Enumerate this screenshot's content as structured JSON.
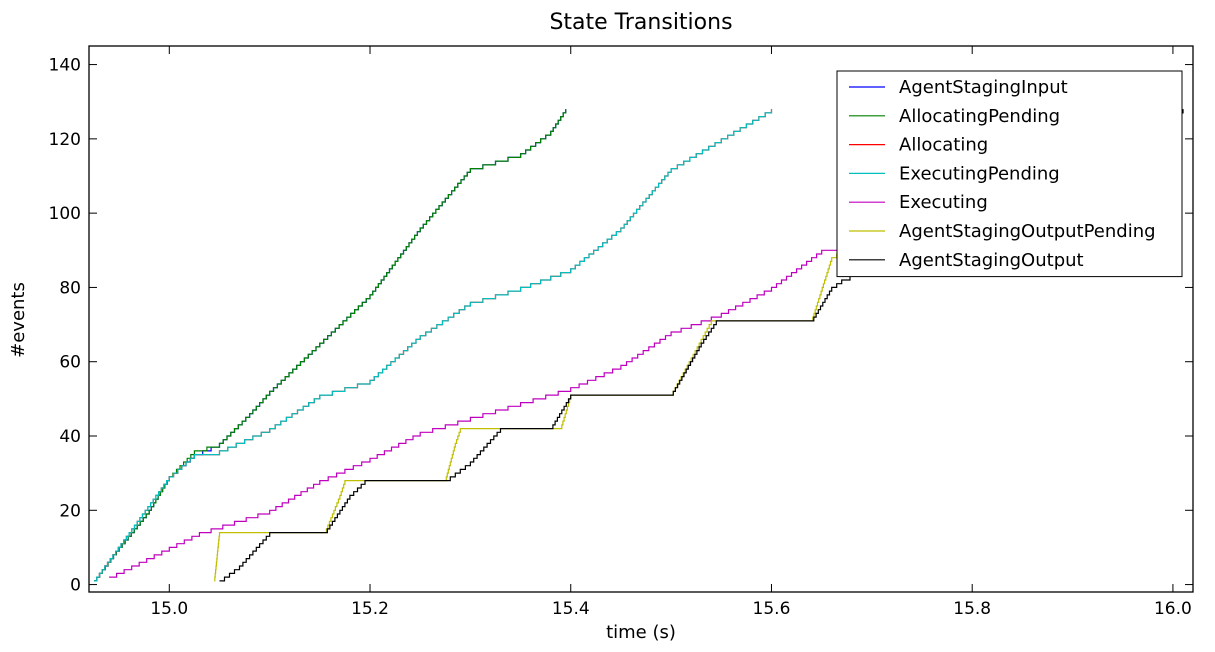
{
  "chart_data": {
    "type": "line",
    "title": "State Transitions",
    "xlabel": "time (s)",
    "ylabel": "#events",
    "xlim": [
      14.92,
      16.02
    ],
    "ylim": [
      -2,
      145
    ],
    "xticks": [
      15.0,
      15.2,
      15.4,
      15.6,
      15.8,
      16.0
    ],
    "xtick_labels": [
      "15.0",
      "15.2",
      "15.4",
      "15.6",
      "15.8",
      "16.0"
    ],
    "yticks": [
      0,
      20,
      40,
      60,
      80,
      100,
      120,
      140
    ],
    "ytick_labels": [
      "0",
      "20",
      "40",
      "60",
      "80",
      "100",
      "120",
      "140"
    ],
    "step": true,
    "grid": false,
    "legend_position": "top-right",
    "series": [
      {
        "name": "AgentStagingInput",
        "color": "#0000ff",
        "x": [
          14.925,
          14.95,
          14.98,
          15.0,
          15.025,
          15.05,
          15.08,
          15.1,
          15.15,
          15.2,
          15.25,
          15.3,
          15.35,
          15.38,
          15.395
        ],
        "y": [
          1,
          10,
          20,
          29,
          35,
          38,
          46,
          52,
          65,
          78,
          96,
          112,
          116,
          122,
          128
        ]
      },
      {
        "name": "AllocatingPending",
        "color": "#008000",
        "x": [
          14.925,
          14.95,
          14.98,
          15.0,
          15.025,
          15.05,
          15.08,
          15.1,
          15.15,
          15.2,
          15.25,
          15.3,
          15.35,
          15.38,
          15.395
        ],
        "y": [
          1,
          10,
          20,
          29,
          36,
          38,
          46,
          52,
          65,
          78,
          96,
          112,
          116,
          122,
          128
        ]
      },
      {
        "name": "Allocating",
        "color": "#ff0000",
        "x": [
          14.925,
          14.96,
          15.0,
          15.025,
          15.05,
          15.1,
          15.15,
          15.2,
          15.25,
          15.3,
          15.35,
          15.4,
          15.45,
          15.5,
          15.55,
          15.6
        ],
        "y": [
          1,
          14,
          29,
          35,
          36,
          42,
          51,
          55,
          67,
          76,
          80,
          85,
          96,
          112,
          120,
          128
        ]
      },
      {
        "name": "ExecutingPending",
        "color": "#00bfbf",
        "x": [
          14.925,
          14.96,
          15.0,
          15.025,
          15.05,
          15.1,
          15.15,
          15.2,
          15.25,
          15.3,
          15.35,
          15.4,
          15.45,
          15.5,
          15.55,
          15.6
        ],
        "y": [
          1,
          14,
          29,
          35,
          36,
          42,
          51,
          55,
          67,
          76,
          80,
          85,
          96,
          112,
          120,
          128
        ]
      },
      {
        "name": "Executing",
        "color": "#bf00bf",
        "x": [
          14.94,
          15.0,
          15.03,
          15.1,
          15.15,
          15.2,
          15.25,
          15.3,
          15.35,
          15.4,
          15.45,
          15.5,
          15.55,
          15.6,
          15.65,
          15.7
        ],
        "y": [
          2,
          10,
          14,
          20,
          28,
          34,
          41,
          45,
          49,
          53,
          59,
          68,
          73,
          80,
          90,
          92
        ]
      },
      {
        "name": "AgentStagingOutputPending",
        "color": "#bfbf00",
        "x": [
          15.045,
          15.05,
          15.155,
          15.17,
          15.175,
          15.275,
          15.285,
          15.29,
          15.39,
          15.4,
          15.5,
          15.52,
          15.54,
          15.64,
          15.66,
          15.67,
          16.0,
          16.01
        ],
        "y": [
          1,
          14,
          14,
          24,
          28,
          28,
          38,
          42,
          42,
          51,
          51,
          61,
          71,
          71,
          88,
          90,
          122,
          128
        ]
      },
      {
        "name": "AgentStagingOutput",
        "color": "#000000",
        "x": [
          15.05,
          15.07,
          15.1,
          15.155,
          15.18,
          15.195,
          15.275,
          15.3,
          15.33,
          15.38,
          15.4,
          15.5,
          15.53,
          15.545,
          15.64,
          15.66,
          15.67,
          16.0,
          16.01
        ],
        "y": [
          1,
          5,
          14,
          14,
          24,
          28,
          28,
          33,
          42,
          42,
          51,
          51,
          65,
          71,
          71,
          80,
          82,
          122,
          128
        ]
      }
    ]
  }
}
